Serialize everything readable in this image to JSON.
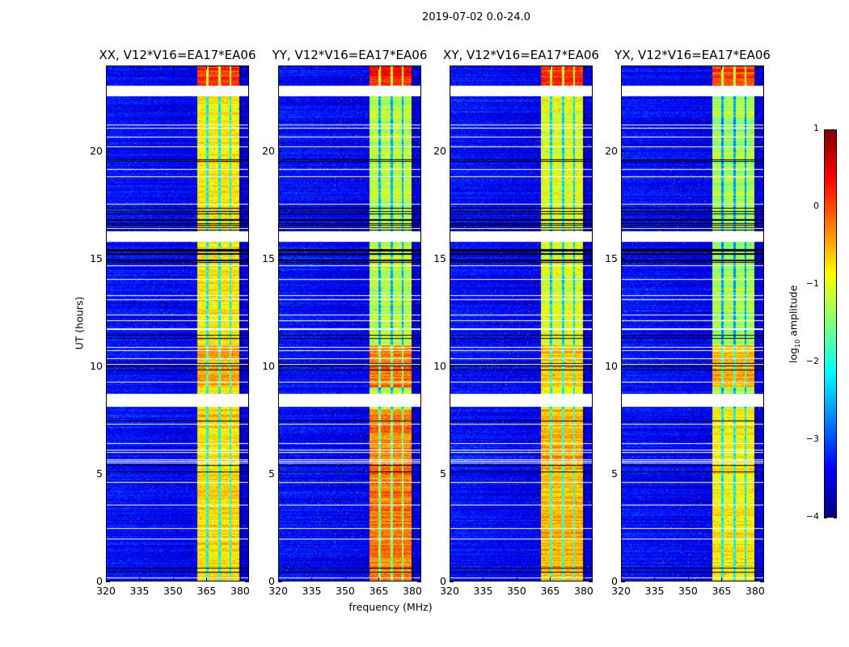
{
  "figure": {
    "suptitle": "2019-07-02 0.0-24.0"
  },
  "chart_data": {
    "type": "heatmap",
    "title": "2019-07-02 0.0-24.0",
    "xlabel": "frequency (MHz)",
    "ylabel": "UT (hours)",
    "xlim": [
      320,
      384
    ],
    "ylim": [
      0,
      24
    ],
    "xticks": [
      "320",
      "335",
      "350",
      "365",
      "380"
    ],
    "xtick_values": [
      320,
      335,
      350,
      365,
      380
    ],
    "yticks": [
      "0",
      "5",
      "10",
      "15",
      "20"
    ],
    "ytick_values": [
      0,
      5,
      10,
      15,
      20
    ],
    "panels": [
      {
        "title": "XX, V12*V16=EA17*EA06",
        "band_level": -0.8,
        "early_level": -0.7,
        "late_level": 0.2,
        "mid_level": -0.4
      },
      {
        "title": "YY, V12*V16=EA17*EA06",
        "band_level": -1.2,
        "early_level": -0.2,
        "late_level": 0.3,
        "mid_level": -0.2
      },
      {
        "title": "XY, V12*V16=EA17*EA06",
        "band_level": -1.0,
        "early_level": -0.5,
        "late_level": 0.2,
        "mid_level": -0.6
      },
      {
        "title": "YX, V12*V16=EA17*EA06",
        "band_level": -1.3,
        "early_level": -0.8,
        "late_level": 0.1,
        "mid_level": -0.5
      }
    ],
    "signal_band_mhz": [
      361,
      380
    ],
    "channel_gaps_mhz": [
      365.5,
      371,
      376
    ],
    "flagged_hours": [
      [
        22.6,
        23.1
      ],
      [
        15.8,
        16.3
      ],
      [
        8.1,
        8.7
      ]
    ],
    "background_level": -3.3,
    "colorbar": {
      "label": "log",
      "label_sub": "10",
      "label_rest": " amplitude",
      "range": [
        -4,
        1
      ],
      "ticks": [
        "1",
        "0",
        "−1",
        "−2",
        "−3",
        "−4"
      ],
      "tick_values": [
        1,
        0,
        -1,
        -2,
        -3,
        -4
      ],
      "colormap": "jet"
    }
  }
}
